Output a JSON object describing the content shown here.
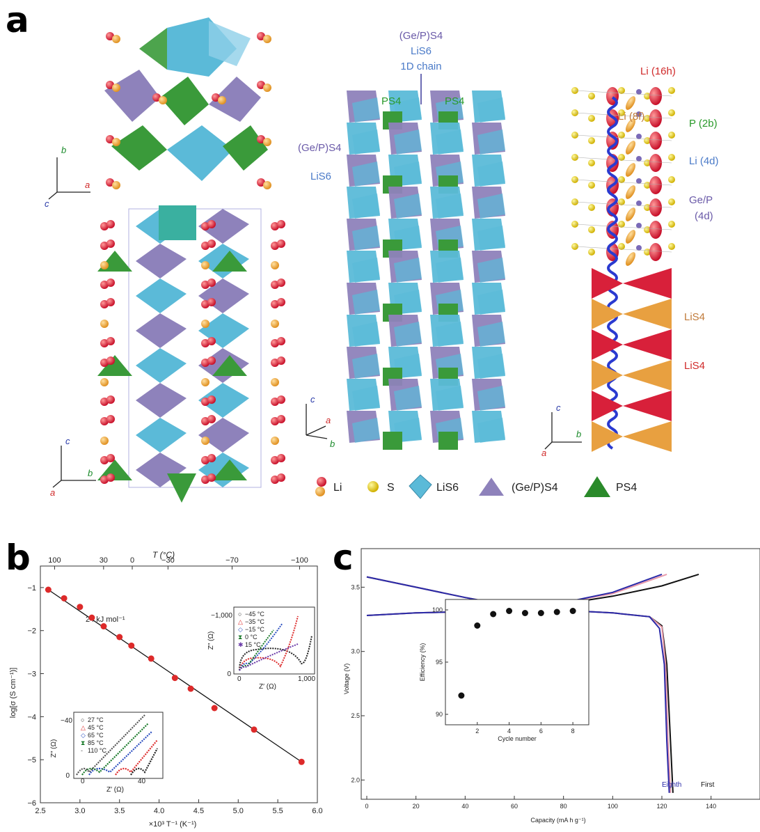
{
  "panels": {
    "a": "a",
    "b": "b",
    "c": "c"
  },
  "crystal": {
    "axes_top": {
      "b": "b",
      "a": "a",
      "c": "c"
    },
    "axes_bottom": {
      "c": "c",
      "b": "b",
      "a": "a"
    },
    "axes_mid": {
      "c": "c",
      "a": "a",
      "b": "b"
    },
    "axes_right": {
      "c": "c",
      "b": "b",
      "a": "a"
    },
    "mid_labels": {
      "gep_top": "(Ge/P)S4",
      "lis6_top": "LiS6",
      "chain": "1D chain",
      "ps4_left": "PS4",
      "ps4_right": "PS4",
      "gep_side": "(Ge/P)S4",
      "lis6_side": "LiS6"
    },
    "right_labels": {
      "li16h": "Li (16h)",
      "li8f": "Li (8f)",
      "p2b": "P (2b)",
      "li4d": "Li (4d)",
      "gep": "Ge/P",
      "gep4d": "(4d)",
      "lis4_top": "LiS4",
      "lis4_bottom": "LiS4"
    },
    "legend": {
      "li": "Li",
      "s": "S",
      "lis6": "LiS6",
      "geps4": "(Ge/P)S4",
      "ps4": "PS4"
    },
    "colors": {
      "lis6": "#5bbad8",
      "geps4": "#8e82bb",
      "ps4": "#3a9a3a",
      "li": "#e0283a",
      "s": "#f0d020",
      "lis4_red": "#d8203a",
      "lis4_orange": "#e8a040"
    }
  },
  "chart_data": [
    {
      "type": "scatter",
      "xlabel": "×10³ T⁻¹ (K⁻¹)",
      "ylabel": "log[σ (S cm⁻¹)]",
      "top_axis_label": "T (°C)",
      "top_ticks": [
        "100",
        "30",
        "0",
        "−30",
        "−70",
        "−100"
      ],
      "top_tick_values": [
        100,
        30,
        0,
        -30,
        -70,
        -100
      ],
      "xlim": [
        2.5,
        6.0
      ],
      "ylim": [
        -6,
        -0.5
      ],
      "x_ticks": [
        "2.5",
        "3.0",
        "3.5",
        "4.0",
        "4.5",
        "5.0",
        "5.5",
        "6.0"
      ],
      "y_ticks": [
        "−1",
        "−2",
        "−3",
        "−4",
        "−5",
        "−6"
      ],
      "annotation": "24 kJ mol⁻¹",
      "x": [
        2.6,
        2.8,
        3.0,
        3.15,
        3.3,
        3.5,
        3.65,
        3.9,
        4.2,
        4.4,
        4.7,
        5.2,
        5.8
      ],
      "y": [
        -1.05,
        -1.25,
        -1.45,
        -1.7,
        -1.9,
        -2.15,
        -2.35,
        -2.65,
        -3.1,
        -3.35,
        -3.8,
        -4.3,
        -5.05
      ],
      "fit_line": {
        "x": [
          2.6,
          5.8
        ],
        "y": [
          -1.05,
          -5.05
        ]
      },
      "colors": {
        "points": "#dd2a2a",
        "line": "#111111"
      },
      "insets": [
        {
          "xlabel": "Z′ (Ω)",
          "ylabel": "Z″ (Ω)",
          "x_ticks": [
            "0",
            "40"
          ],
          "y_ticks": [
            "0",
            "−40"
          ],
          "legend": [
            "27 °C",
            "45 °C",
            "65 °C",
            "85 °C",
            "110 °C"
          ],
          "colors": [
            "#222222",
            "#dd2a2a",
            "#2c4fc0",
            "#1a7a2a",
            "#555555"
          ]
        },
        {
          "xlabel": "Z′ (Ω)",
          "ylabel": "Z″ (Ω)",
          "x_ticks": [
            "0",
            "1,000"
          ],
          "y_ticks": [
            "0",
            "−1,000"
          ],
          "legend": [
            "−45 °C",
            "−35 °C",
            "−15 °C",
            "0 °C",
            "15 °C"
          ],
          "colors": [
            "#222222",
            "#dd2a2a",
            "#2c4fc0",
            "#1a7a2a",
            "#6a3aa8"
          ]
        }
      ]
    },
    {
      "type": "line",
      "xlabel": "Capacity (mA h g⁻¹)",
      "ylabel": "Voltage (V)",
      "xlim": [
        0,
        150
      ],
      "ylim": [
        1.85,
        3.8
      ],
      "x_ticks": [
        "0",
        "20",
        "40",
        "60",
        "80",
        "100",
        "120",
        "140"
      ],
      "y_ticks": [
        "2.0",
        "2.5",
        "3.0",
        "3.5"
      ],
      "series": [
        {
          "name": "First",
          "color": "#111111",
          "charge": {
            "x": [
              0,
              20,
              40,
              60,
              80,
              100,
              120,
              135
            ],
            "y": [
              3.28,
              3.3,
              3.31,
              3.33,
              3.37,
              3.43,
              3.51,
              3.6
            ]
          },
          "discharge": {
            "x": [
              0,
              20,
              40,
              60,
              80,
              100,
              115,
              120,
              122,
              123.5,
              124.5
            ],
            "y": [
              3.58,
              3.5,
              3.42,
              3.35,
              3.32,
              3.3,
              3.27,
              3.2,
              2.9,
              2.3,
              1.9
            ]
          }
        },
        {
          "name": "",
          "color": "#e89aaa",
          "charge": {
            "x": [
              0,
              20,
              40,
              60,
              80,
              100,
              122
            ],
            "y": [
              3.28,
              3.3,
              3.31,
              3.33,
              3.38,
              3.45,
              3.6
            ]
          },
          "discharge": {
            "x": [
              0,
              20,
              40,
              60,
              80,
              100,
              115,
              120,
              121.5,
              122.5,
              123.5
            ],
            "y": [
              3.58,
              3.5,
              3.42,
              3.35,
              3.32,
              3.3,
              3.27,
              3.19,
              2.9,
              2.3,
              1.9
            ]
          }
        },
        {
          "name": "Eighth",
          "color": "#2a2aa8",
          "charge": {
            "x": [
              0,
              20,
              40,
              60,
              80,
              100,
              120
            ],
            "y": [
              3.28,
              3.3,
              3.31,
              3.33,
              3.38,
              3.46,
              3.6
            ]
          },
          "discharge": {
            "x": [
              0,
              20,
              40,
              60,
              80,
              100,
              115,
              119,
              121,
              122,
              123
            ],
            "y": [
              3.58,
              3.5,
              3.42,
              3.35,
              3.32,
              3.3,
              3.27,
              3.18,
              2.9,
              2.3,
              1.9
            ]
          }
        }
      ],
      "inset": {
        "type": "scatter",
        "xlabel": "Cycle number",
        "ylabel": "Efficiency (%)",
        "xlim": [
          0,
          9
        ],
        "ylim": [
          89,
          101
        ],
        "x_ticks": [
          "2",
          "4",
          "6",
          "8"
        ],
        "y_ticks": [
          "90",
          "95",
          "100"
        ],
        "x": [
          1,
          2,
          3,
          4,
          5,
          6,
          7,
          8
        ],
        "y": [
          91.8,
          98.5,
          99.6,
          99.9,
          99.7,
          99.7,
          99.8,
          99.9
        ]
      }
    }
  ]
}
